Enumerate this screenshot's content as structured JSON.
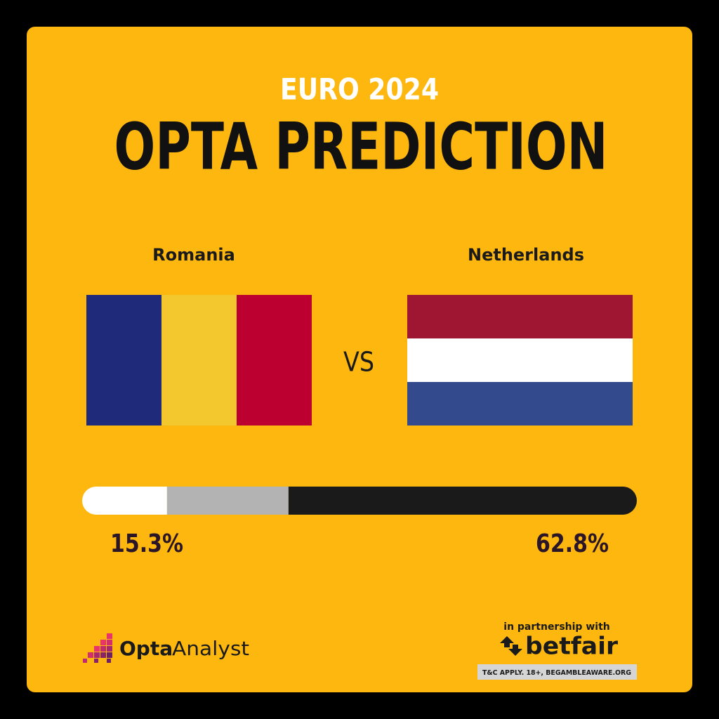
{
  "chart_data": {
    "type": "stacked_bar",
    "subtitle": "EURO 2024",
    "title": "OPTA PREDICTION",
    "series": [
      {
        "name": "Romania",
        "color": "#ffffff",
        "values": [
          15.3
        ],
        "value_labels": [
          "15.3%"
        ]
      },
      {
        "color": "#b3b3b3",
        "values": [
          21.9
        ]
      },
      {
        "name": "Netherlands",
        "color": "#1a1a1a",
        "values": [
          62.8
        ],
        "value_labels": [
          "62.8%"
        ]
      }
    ],
    "xlim": [
      0,
      100
    ]
  },
  "vs": "VS",
  "footer": {
    "brand_bold": "Opta",
    "brand_rest": "Analyst",
    "partnership": "in partnership with",
    "partner": "betfair",
    "disclaimer": "T&C APPLY. 18+, BEGAMBLEAWARE.ORG"
  }
}
